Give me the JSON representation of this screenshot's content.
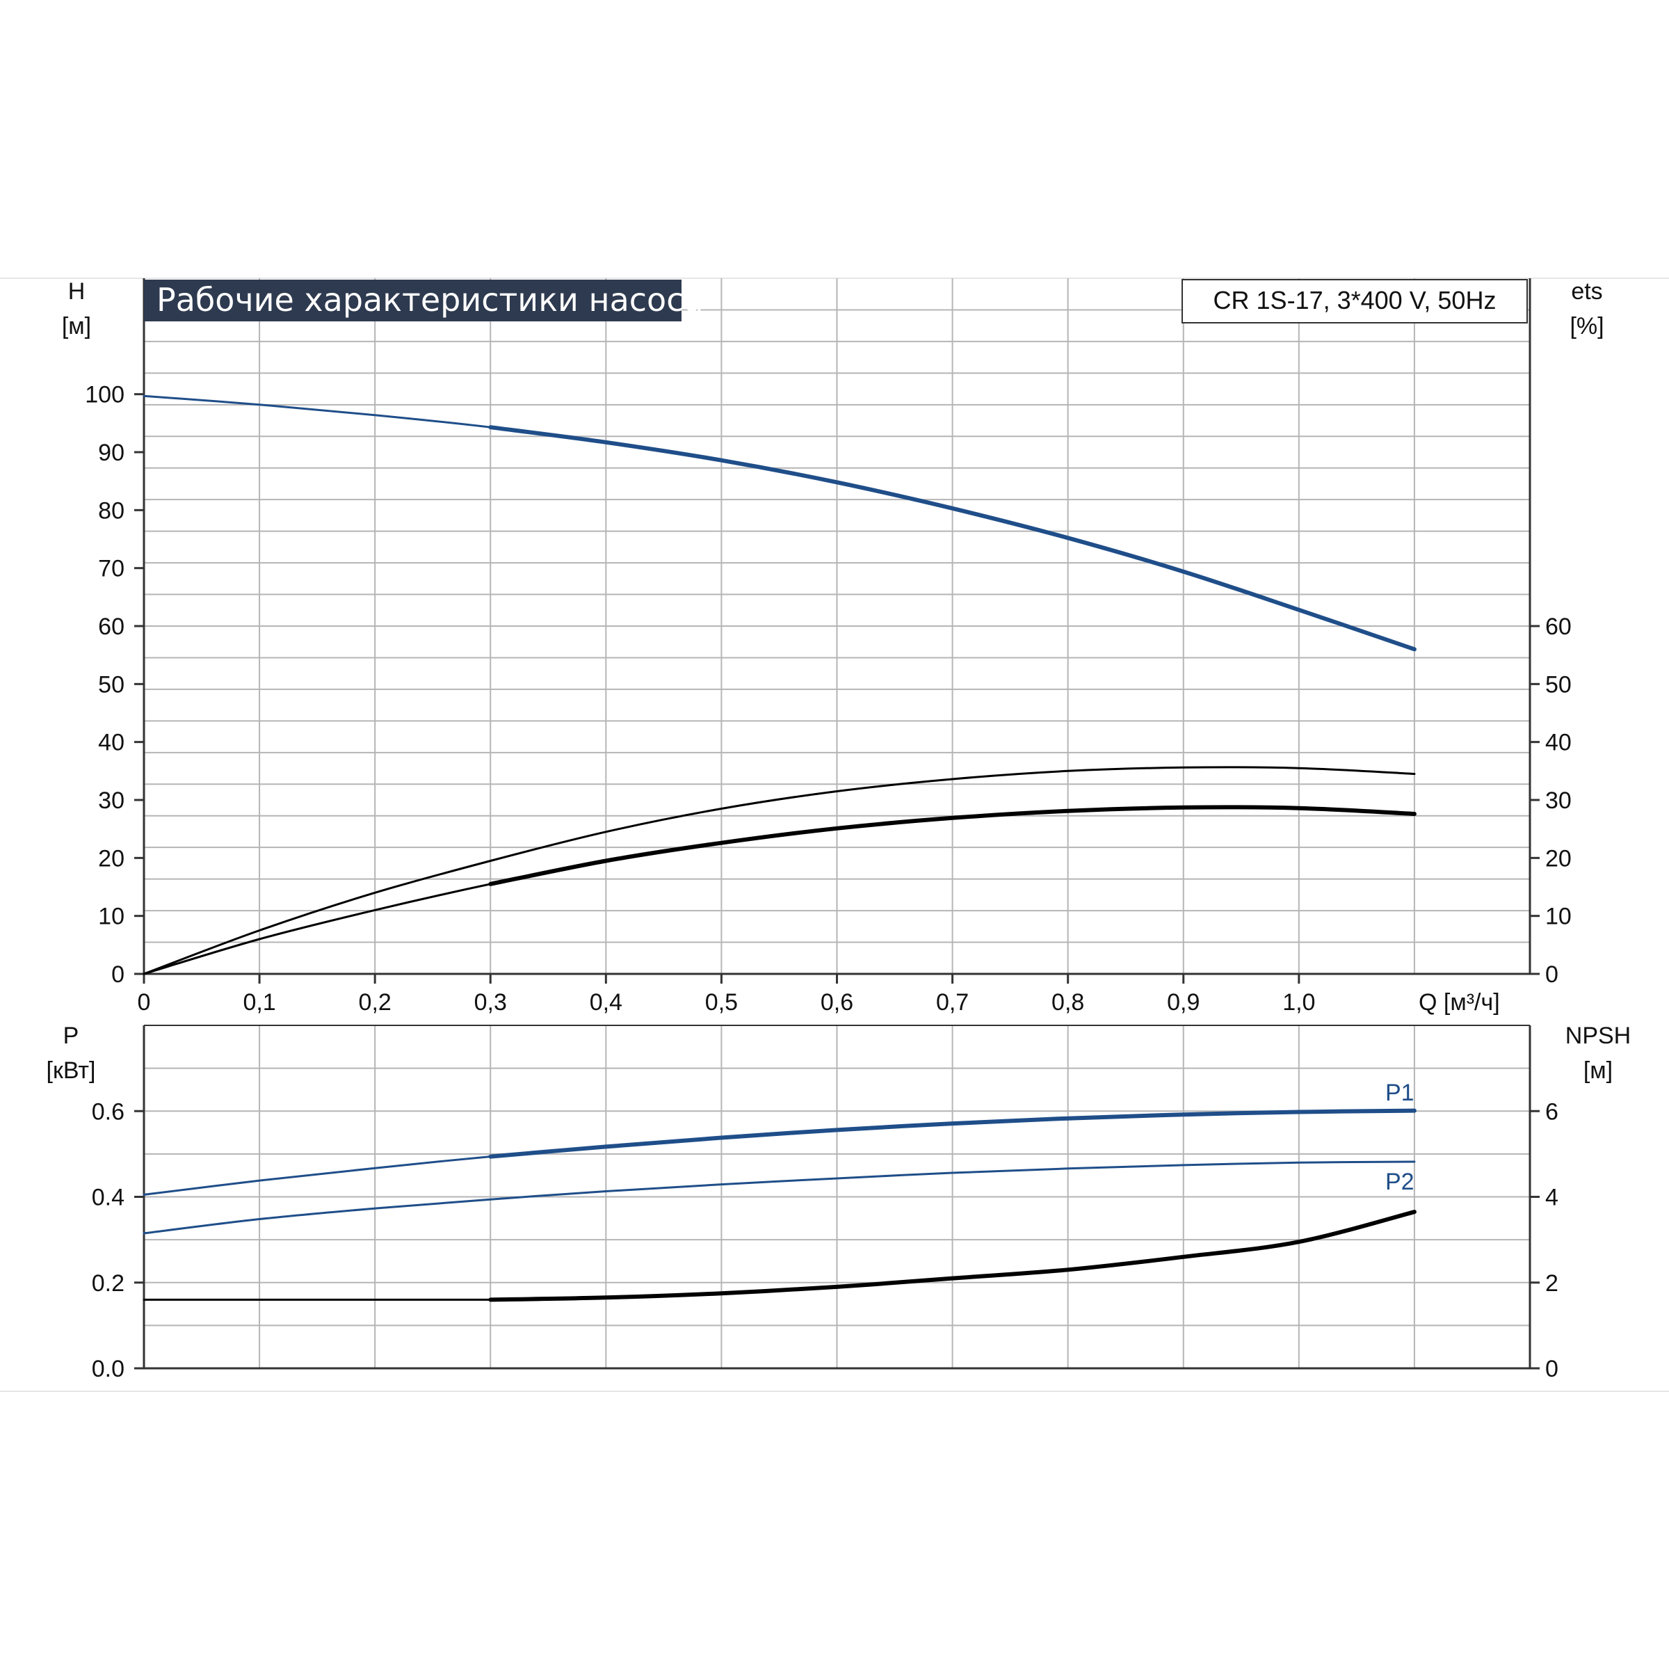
{
  "title": "Рабочие характеристики насоса",
  "model": "CR 1S-17, 3*400 V, 50Hz",
  "colors": {
    "blue": "#1f4e89",
    "black": "#000000",
    "title_bg": "#2e3a4f",
    "grid": "#b5b5b5"
  },
  "chart_data": [
    {
      "type": "line",
      "panel": "upper",
      "xlabel": "Q [м³/ч]",
      "x_ticks": [
        "0",
        "0,1",
        "0,2",
        "0,3",
        "0,4",
        "0,5",
        "0,6",
        "0,7",
        "0,8",
        "0,9",
        "1,0"
      ],
      "xlim": [
        0,
        1.2
      ],
      "y_left": {
        "label": "H",
        "unit": "[м]",
        "ticks": [
          0,
          10,
          20,
          30,
          40,
          50,
          60,
          70,
          80,
          90,
          100
        ],
        "lim": [
          0,
          120
        ]
      },
      "y_right": {
        "label": "ets",
        "unit": "[%]",
        "ticks": [
          0,
          10,
          20,
          30,
          40,
          50,
          60
        ],
        "lim": [
          0,
          120
        ]
      },
      "grid": true,
      "series": [
        {
          "axis": "left",
          "color": "#1f4e89",
          "thick_from": 0.3,
          "x": [
            0,
            0.1,
            0.2,
            0.3,
            0.4,
            0.5,
            0.6,
            0.7,
            0.8,
            0.9,
            1.0,
            1.1
          ],
          "y": [
            99.7,
            98.2,
            96.4,
            94.3,
            91.7,
            88.6,
            84.8,
            80.3,
            75.2,
            69.4,
            62.8,
            56.0
          ]
        },
        {
          "axis": "right",
          "color": "#000000",
          "thick_from": 0.3,
          "x": [
            0,
            0.1,
            0.2,
            0.3,
            0.4,
            0.5,
            0.6,
            0.7,
            0.8,
            0.9,
            1.0,
            1.1
          ],
          "y": [
            0,
            6,
            11,
            15.5,
            19.5,
            22.6,
            25.1,
            26.9,
            28.1,
            28.7,
            28.6,
            27.6
          ]
        },
        {
          "axis": "right",
          "color": "#000000",
          "thick_from": 1.2,
          "x": [
            0,
            0.1,
            0.2,
            0.3,
            0.4,
            0.5,
            0.6,
            0.7,
            0.8,
            0.9,
            1.0,
            1.1
          ],
          "y": [
            0,
            7.5,
            14,
            19.5,
            24.5,
            28.5,
            31.5,
            33.6,
            35.0,
            35.6,
            35.5,
            34.5
          ]
        }
      ]
    },
    {
      "type": "line",
      "panel": "lower",
      "x_ticks": [],
      "xlim": [
        0,
        1.2
      ],
      "y_left": {
        "label": "P",
        "unit": "[кВт]",
        "ticks": [
          "0.0",
          "0.2",
          "0.4",
          "0.6"
        ],
        "lim": [
          0,
          0.8
        ]
      },
      "y_right": {
        "label": "NPSH",
        "unit": "[м]",
        "ticks": [
          "0",
          "2",
          "4",
          "6"
        ],
        "lim": [
          0,
          8
        ]
      },
      "grid": true,
      "series": [
        {
          "name": "P1",
          "axis": "left",
          "color": "#1f4e89",
          "thick_from": 0.3,
          "x": [
            0,
            0.1,
            0.2,
            0.3,
            0.4,
            0.5,
            0.6,
            0.7,
            0.8,
            0.9,
            1.0,
            1.1
          ],
          "y": [
            0.405,
            0.438,
            0.467,
            0.494,
            0.517,
            0.538,
            0.556,
            0.571,
            0.583,
            0.592,
            0.598,
            0.601
          ]
        },
        {
          "name": "P2",
          "axis": "left",
          "color": "#1f4e89",
          "thick_from": 1.2,
          "x": [
            0,
            0.1,
            0.2,
            0.3,
            0.4,
            0.5,
            0.6,
            0.7,
            0.8,
            0.9,
            1.0,
            1.1
          ],
          "y": [
            0.315,
            0.348,
            0.373,
            0.394,
            0.413,
            0.429,
            0.443,
            0.456,
            0.466,
            0.474,
            0.48,
            0.482
          ]
        },
        {
          "axis": "right",
          "color": "#000000",
          "thick_from": 0.3,
          "x": [
            0,
            0.1,
            0.2,
            0.3,
            0.4,
            0.5,
            0.6,
            0.7,
            0.8,
            0.9,
            1.0,
            1.1
          ],
          "y": [
            1.6,
            1.6,
            1.6,
            1.6,
            1.65,
            1.75,
            1.9,
            2.1,
            2.3,
            2.6,
            2.95,
            3.65
          ]
        }
      ]
    }
  ]
}
